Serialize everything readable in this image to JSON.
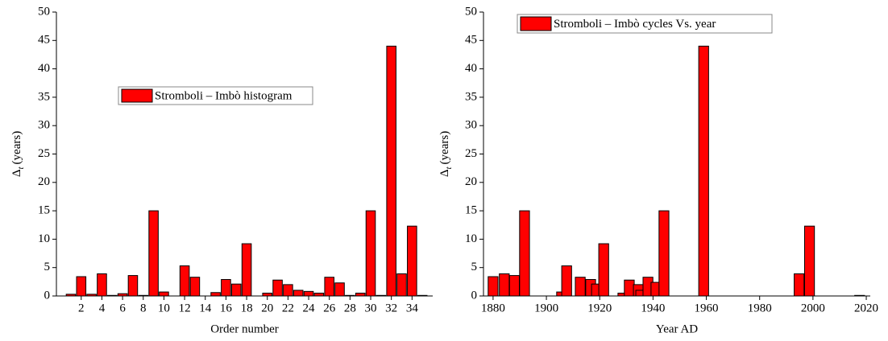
{
  "chart_data": [
    {
      "type": "bar",
      "xlabel": "Order number",
      "ylabel": {
        "symbol": "Δ",
        "subscript": "t",
        "text": "(years)"
      },
      "legend": "Stromboli – Imbò histogram",
      "color": "#ff0000",
      "x": [
        1,
        2,
        3,
        4,
        5,
        6,
        7,
        8,
        9,
        10,
        11,
        12,
        13,
        14,
        15,
        16,
        17,
        18,
        19,
        20,
        21,
        22,
        23,
        24,
        25,
        26,
        27,
        28,
        29,
        30,
        31,
        32,
        33,
        34,
        35
      ],
      "values": [
        0.3,
        3.4,
        0.3,
        3.9,
        0.1,
        0.4,
        3.6,
        0.1,
        15,
        0.7,
        0,
        5.3,
        3.3,
        0,
        0.6,
        2.9,
        2.1,
        9.2,
        0,
        0.5,
        2.8,
        2.0,
        1.0,
        0.8,
        0.5,
        3.3,
        2.3,
        0.1,
        0.5,
        15,
        0.1,
        44,
        3.9,
        12.3,
        0.1
      ],
      "xlim": [
        -0.4,
        36
      ],
      "xticks": [
        2,
        4,
        6,
        8,
        10,
        12,
        14,
        16,
        18,
        20,
        22,
        24,
        26,
        28,
        30,
        32,
        34
      ],
      "ylim": [
        0,
        50
      ],
      "yticks": [
        0,
        5,
        10,
        15,
        20,
        25,
        30,
        35,
        40,
        45,
        50
      ]
    },
    {
      "type": "bar",
      "xlabel": "Year AD",
      "ylabel": {
        "symbol": "Δ",
        "subscript": "t",
        "text": "(years)"
      },
      "legend": "Stromboli – Imbò cycles Vs. year",
      "color": "#ff0000",
      "x": [
        1880,
        1884.2,
        1888,
        1891.8,
        1905.7,
        1907.6,
        1912.7,
        1916.6,
        1918.8,
        1921.5,
        1928.7,
        1931.1,
        1934.5,
        1935.4,
        1938.1,
        1941.1,
        1944.1,
        1959,
        1994.8,
        1998.7,
        2017.5
      ],
      "values": [
        3.4,
        3.9,
        3.6,
        15,
        0.7,
        5.3,
        3.3,
        2.9,
        2.1,
        9.2,
        0.5,
        2.8,
        2.0,
        1.0,
        3.3,
        2.4,
        15,
        44,
        3.9,
        12.3,
        0.1
      ],
      "xlim": [
        1876.4,
        2021.5
      ],
      "xticks": [
        1880,
        1900,
        1920,
        1940,
        1960,
        1980,
        2000,
        2020
      ],
      "ylim": [
        0,
        50
      ],
      "yticks": [
        0,
        5,
        10,
        15,
        20,
        25,
        30,
        35,
        40,
        45,
        50
      ]
    }
  ]
}
